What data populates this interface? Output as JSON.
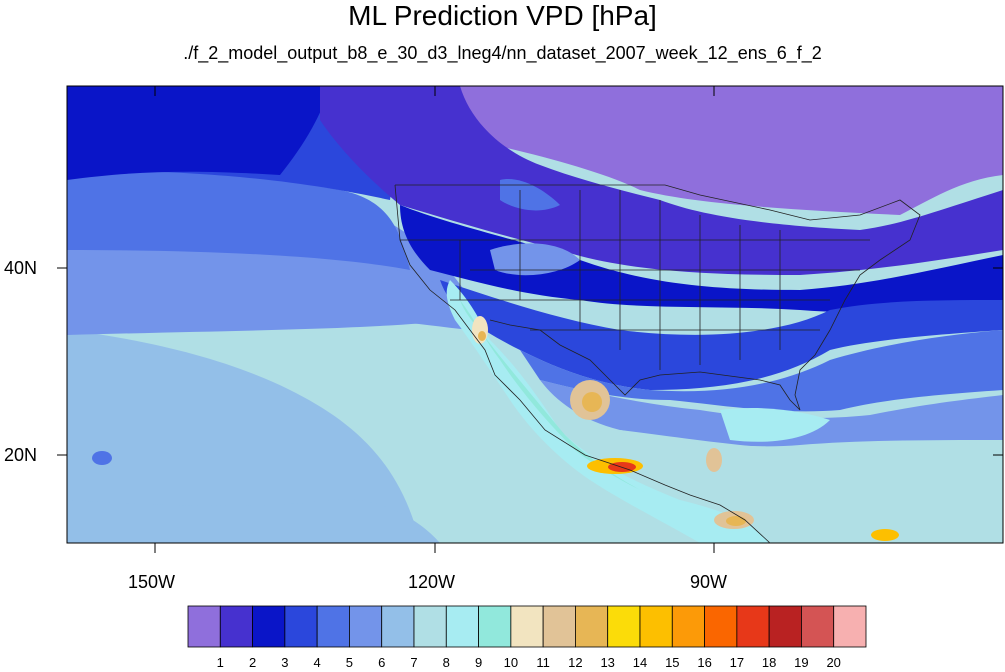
{
  "title": "ML Prediction VPD [hPa]",
  "subtitle": "./f_2_model_output_b8_e_30_d3_lneg4/nn_dataset_2007_week_12_ens_6_f_2",
  "axes": {
    "lon_labels": [
      "150W",
      "120W",
      "90W"
    ],
    "lat_labels": [
      "40N",
      "20N"
    ]
  },
  "colorbar": {
    "levels": [
      "1",
      "2",
      "3",
      "4",
      "5",
      "6",
      "7",
      "8",
      "9",
      "10",
      "11",
      "12",
      "13",
      "14",
      "15",
      "16",
      "17",
      "18",
      "19",
      "20"
    ],
    "colors": [
      "#8f6fdc",
      "#4631cf",
      "#0a15c8",
      "#2b47dc",
      "#4f73e6",
      "#7394ea",
      "#93bfe8",
      "#b0dfe5",
      "#a7ecf2",
      "#91e8dc",
      "#f2e4c0",
      "#e1c397",
      "#e7b655",
      "#fbdc09",
      "#fdbf00",
      "#fc9a08",
      "#fa6600",
      "#e73819",
      "#b92222",
      "#d45454",
      "#f7b0b0"
    ]
  }
}
